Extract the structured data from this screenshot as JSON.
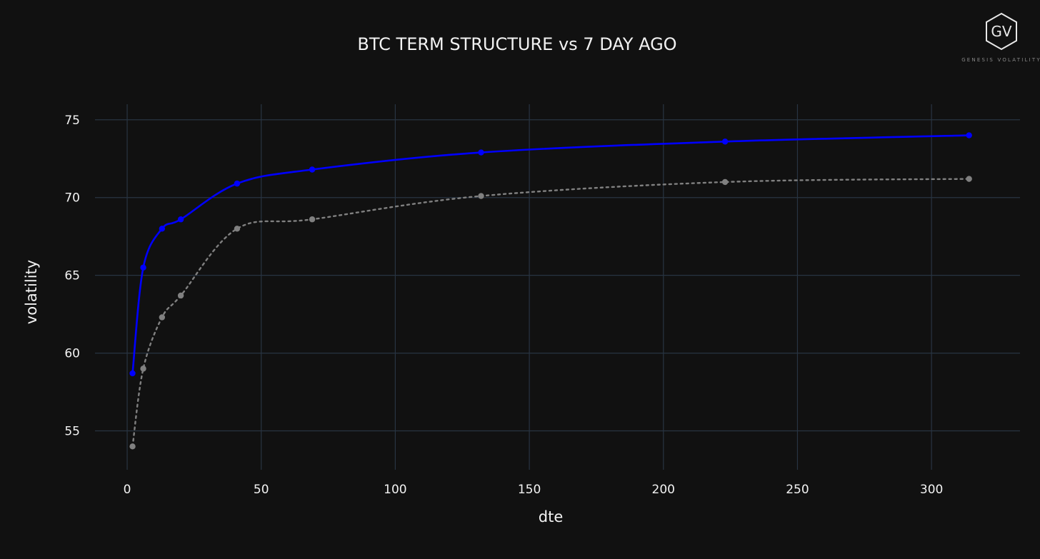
{
  "chart_data": {
    "type": "line",
    "title": "BTC TERM STRUCTURE vs 7 DAY AGO",
    "xlabel": "dte",
    "ylabel": "volatility",
    "xlim": [
      -12,
      333
    ],
    "ylim": [
      52.5,
      76
    ],
    "x_ticks": [
      0,
      50,
      100,
      150,
      200,
      250,
      300
    ],
    "y_ticks": [
      55,
      60,
      65,
      70,
      75
    ],
    "grid": true,
    "legend": "none",
    "series": [
      {
        "color": "#0000ff",
        "line_style": "solid",
        "x": [
          2,
          6,
          13,
          20,
          41,
          69,
          132,
          223,
          314
        ],
        "y": [
          58.7,
          65.5,
          68.0,
          68.6,
          70.9,
          71.8,
          72.9,
          73.6,
          74.0
        ]
      },
      {
        "color": "#808080",
        "line_style": "dotted",
        "x": [
          2,
          6,
          13,
          20,
          41,
          69,
          132,
          223,
          314
        ],
        "y": [
          54.0,
          59.0,
          62.3,
          63.7,
          68.0,
          68.6,
          70.1,
          71.0,
          71.2
        ]
      }
    ]
  },
  "logo": {
    "letters": "GV",
    "subtitle": "GENESIS VOLATILITY"
  }
}
